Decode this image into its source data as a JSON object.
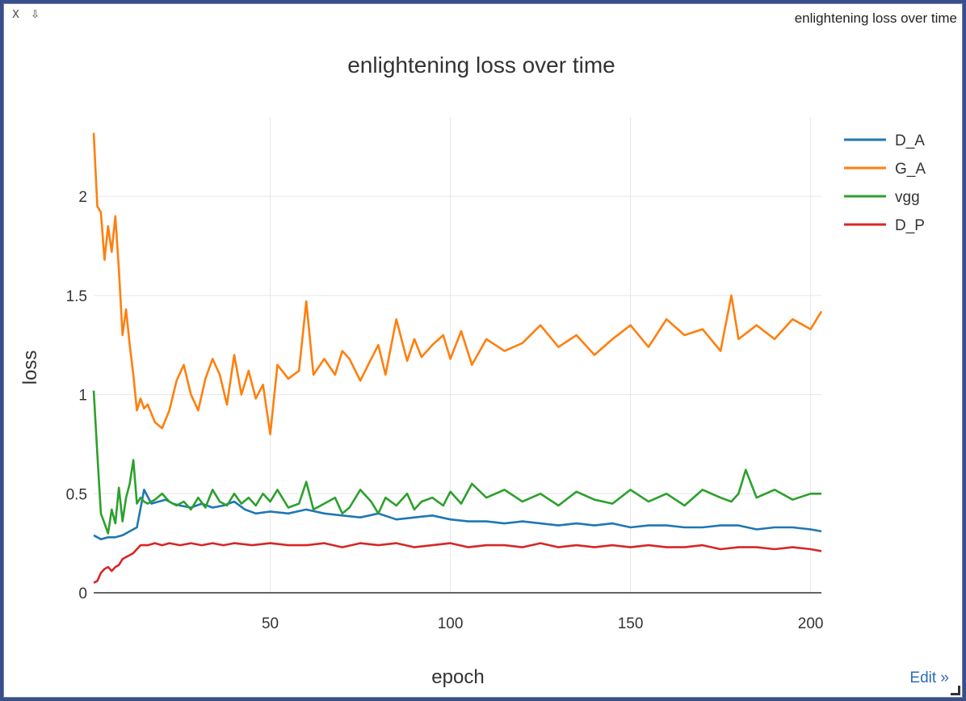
{
  "window": {
    "title": "enlightening loss over time",
    "close_label": "X",
    "save_label": "⇩",
    "edit_label": "Edit »"
  },
  "chart_data": {
    "type": "line",
    "title": "enlightening loss over time",
    "xlabel": "epoch",
    "ylabel": "loss",
    "xlim": [
      1,
      203
    ],
    "ylim": [
      0,
      2.4
    ],
    "xticks": [
      50,
      100,
      150,
      200
    ],
    "yticks": [
      0,
      0.5,
      1,
      1.5,
      2
    ],
    "grid": true,
    "legend_position": "top-right",
    "series": [
      {
        "name": "D_A",
        "color": "#1f77b4",
        "x": [
          1,
          3,
          5,
          7,
          9,
          11,
          13,
          15,
          17,
          19,
          21,
          23,
          25,
          28,
          31,
          34,
          37,
          40,
          43,
          46,
          50,
          55,
          60,
          65,
          70,
          75,
          80,
          85,
          90,
          95,
          100,
          105,
          110,
          115,
          120,
          125,
          130,
          135,
          140,
          145,
          150,
          155,
          160,
          165,
          170,
          175,
          180,
          185,
          190,
          195,
          200,
          203
        ],
        "y": [
          0.29,
          0.27,
          0.28,
          0.28,
          0.29,
          0.31,
          0.33,
          0.52,
          0.45,
          0.46,
          0.47,
          0.45,
          0.44,
          0.43,
          0.45,
          0.43,
          0.44,
          0.46,
          0.42,
          0.4,
          0.41,
          0.4,
          0.42,
          0.4,
          0.39,
          0.38,
          0.4,
          0.37,
          0.38,
          0.39,
          0.37,
          0.36,
          0.36,
          0.35,
          0.36,
          0.35,
          0.34,
          0.35,
          0.34,
          0.35,
          0.33,
          0.34,
          0.34,
          0.33,
          0.33,
          0.34,
          0.34,
          0.32,
          0.33,
          0.33,
          0.32,
          0.31
        ]
      },
      {
        "name": "G_A",
        "color": "#ff7f0e",
        "x": [
          1,
          2,
          3,
          4,
          5,
          6,
          7,
          8,
          9,
          10,
          11,
          12,
          13,
          14,
          15,
          16,
          18,
          20,
          22,
          24,
          26,
          28,
          30,
          32,
          34,
          36,
          38,
          40,
          42,
          44,
          46,
          48,
          50,
          52,
          55,
          58,
          60,
          62,
          65,
          68,
          70,
          72,
          75,
          78,
          80,
          82,
          85,
          88,
          90,
          92,
          95,
          98,
          100,
          103,
          106,
          110,
          115,
          120,
          125,
          130,
          135,
          140,
          145,
          150,
          155,
          160,
          165,
          170,
          175,
          178,
          180,
          185,
          190,
          195,
          200,
          203
        ],
        "y": [
          2.32,
          1.95,
          1.92,
          1.68,
          1.85,
          1.72,
          1.9,
          1.63,
          1.3,
          1.43,
          1.25,
          1.1,
          0.92,
          0.98,
          0.93,
          0.95,
          0.86,
          0.83,
          0.92,
          1.07,
          1.15,
          1.0,
          0.92,
          1.08,
          1.18,
          1.1,
          0.95,
          1.2,
          1.0,
          1.12,
          0.98,
          1.05,
          0.8,
          1.15,
          1.08,
          1.12,
          1.47,
          1.1,
          1.18,
          1.1,
          1.22,
          1.18,
          1.07,
          1.18,
          1.25,
          1.1,
          1.38,
          1.17,
          1.28,
          1.19,
          1.25,
          1.3,
          1.18,
          1.32,
          1.15,
          1.28,
          1.22,
          1.26,
          1.35,
          1.24,
          1.3,
          1.2,
          1.28,
          1.35,
          1.24,
          1.38,
          1.3,
          1.33,
          1.22,
          1.5,
          1.28,
          1.35,
          1.28,
          1.38,
          1.33,
          1.42
        ]
      },
      {
        "name": "vgg",
        "color": "#2ca02c",
        "x": [
          1,
          2,
          3,
          4,
          5,
          6,
          7,
          8,
          9,
          10,
          11,
          12,
          13,
          14,
          15,
          16,
          18,
          20,
          22,
          24,
          26,
          28,
          30,
          32,
          34,
          36,
          38,
          40,
          42,
          44,
          46,
          48,
          50,
          52,
          55,
          58,
          60,
          62,
          65,
          68,
          70,
          72,
          75,
          78,
          80,
          82,
          85,
          88,
          90,
          92,
          95,
          98,
          100,
          103,
          106,
          110,
          115,
          120,
          125,
          130,
          135,
          140,
          145,
          150,
          155,
          160,
          165,
          170,
          175,
          178,
          180,
          182,
          185,
          190,
          195,
          200,
          203
        ],
        "y": [
          1.02,
          0.7,
          0.4,
          0.35,
          0.3,
          0.42,
          0.35,
          0.53,
          0.36,
          0.48,
          0.55,
          0.67,
          0.45,
          0.48,
          0.46,
          0.45,
          0.47,
          0.5,
          0.46,
          0.44,
          0.46,
          0.42,
          0.48,
          0.43,
          0.52,
          0.46,
          0.44,
          0.5,
          0.45,
          0.48,
          0.44,
          0.5,
          0.46,
          0.52,
          0.43,
          0.45,
          0.56,
          0.42,
          0.45,
          0.48,
          0.4,
          0.43,
          0.52,
          0.46,
          0.4,
          0.48,
          0.44,
          0.5,
          0.42,
          0.46,
          0.48,
          0.44,
          0.51,
          0.45,
          0.55,
          0.48,
          0.52,
          0.46,
          0.5,
          0.44,
          0.51,
          0.47,
          0.45,
          0.52,
          0.46,
          0.5,
          0.44,
          0.52,
          0.48,
          0.46,
          0.5,
          0.62,
          0.48,
          0.52,
          0.47,
          0.5,
          0.5
        ]
      },
      {
        "name": "D_P",
        "color": "#d62728",
        "x": [
          1,
          2,
          3,
          4,
          5,
          6,
          7,
          8,
          9,
          10,
          11,
          12,
          13,
          14,
          16,
          18,
          20,
          22,
          25,
          28,
          31,
          34,
          37,
          40,
          45,
          50,
          55,
          60,
          65,
          70,
          75,
          80,
          85,
          90,
          95,
          100,
          105,
          110,
          115,
          120,
          125,
          130,
          135,
          140,
          145,
          150,
          155,
          160,
          165,
          170,
          175,
          180,
          185,
          190,
          195,
          200,
          203
        ],
        "y": [
          0.05,
          0.06,
          0.1,
          0.12,
          0.13,
          0.11,
          0.13,
          0.14,
          0.17,
          0.18,
          0.19,
          0.2,
          0.22,
          0.24,
          0.24,
          0.25,
          0.24,
          0.25,
          0.24,
          0.25,
          0.24,
          0.25,
          0.24,
          0.25,
          0.24,
          0.25,
          0.24,
          0.24,
          0.25,
          0.23,
          0.25,
          0.24,
          0.25,
          0.23,
          0.24,
          0.25,
          0.23,
          0.24,
          0.24,
          0.23,
          0.25,
          0.23,
          0.24,
          0.23,
          0.24,
          0.23,
          0.24,
          0.23,
          0.23,
          0.24,
          0.22,
          0.23,
          0.23,
          0.22,
          0.23,
          0.22,
          0.21
        ]
      }
    ]
  }
}
